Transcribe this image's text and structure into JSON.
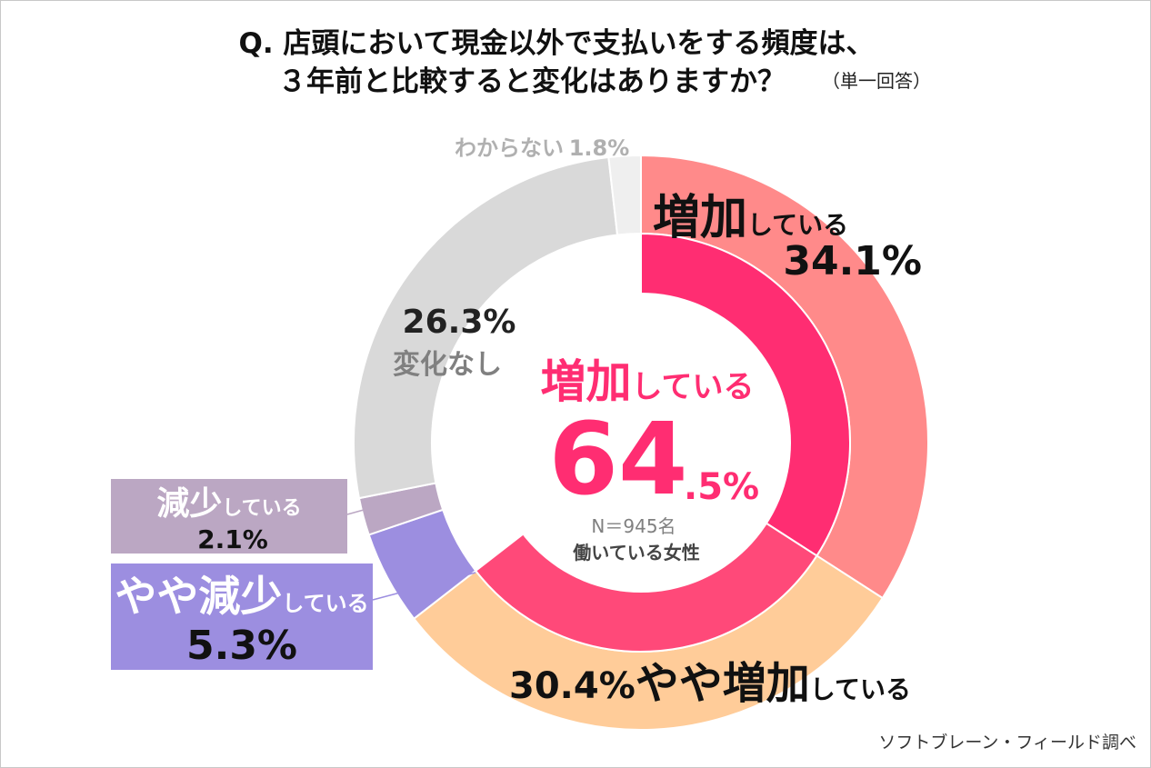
{
  "title": {
    "line1": "Q.  店頭において現金以外で支払いをする頻度は、",
    "line2": "３年前と比較すると変化はありますか？",
    "note": "（単一回答）"
  },
  "source": "ソフトブレーン・フィールド調べ",
  "center": {
    "label_big": "増加",
    "label_small": "している",
    "value_int": "64",
    "value_dec": ".5%",
    "sample": "N＝945名",
    "population": "働いている女性"
  },
  "slice_labels": {
    "increase": {
      "big": "増加",
      "small": "している",
      "value": "34.1%"
    },
    "slight_increase": {
      "value": "30.4%",
      "big": "やや増加",
      "small": "している"
    },
    "slight_decrease": {
      "big": "やや減少",
      "small": "している",
      "value": "5.3%"
    },
    "decrease": {
      "big": "減少",
      "small": "している",
      "value": "2.1%"
    },
    "no_change": {
      "value": "26.3%",
      "label": "変化なし"
    },
    "unknown": {
      "label": "わからない",
      "value": "1.8%"
    }
  },
  "chart_data": {
    "type": "pie",
    "variant": "nested-donut",
    "start_angle_deg": 0,
    "direction": "clockwise",
    "outer_ring": [
      {
        "name": "増加している",
        "value": 34.1,
        "color": "#ff8a8a"
      },
      {
        "name": "やや増加している",
        "value": 30.4,
        "color": "#ffcc99"
      },
      {
        "name": "やや減少している",
        "value": 5.3,
        "color": "#9c8ee0"
      },
      {
        "name": "減少している",
        "value": 2.1,
        "color": "#bba7c3"
      },
      {
        "name": "変化なし",
        "value": 26.3,
        "color": "#d9d9d9"
      },
      {
        "name": "わからない",
        "value": 1.8,
        "color": "#efefef"
      }
    ],
    "inner_ring": [
      {
        "name": "増加している",
        "value": 34.1,
        "color": "#ff2d72"
      },
      {
        "name": "やや増加している",
        "value": 30.4,
        "color": "#ff4979"
      }
    ],
    "center_total": {
      "name": "増加している",
      "value": 64.5,
      "color": "#ff2d72"
    }
  },
  "colors": {
    "accent_pink": "#ff2d72",
    "text_dark": "#111111",
    "text_gray": "#808080",
    "text_light_gray": "#b0b0b0",
    "decrease_box": "#bba7c3",
    "slight_decrease_box": "#9c8ee0"
  }
}
